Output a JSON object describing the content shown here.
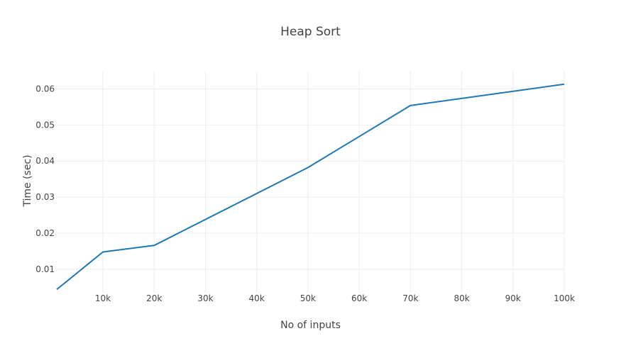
{
  "chart_data": {
    "type": "line",
    "title": "Heap  Sort",
    "xlabel": "No of inputs",
    "ylabel": "Time (sec)",
    "xlim": [
      1000,
      100000
    ],
    "ylim": [
      0.0035,
      0.065
    ],
    "grid": true,
    "x_ticks": [
      {
        "value": 10000,
        "label": "10k"
      },
      {
        "value": 20000,
        "label": "20k"
      },
      {
        "value": 30000,
        "label": "30k"
      },
      {
        "value": 40000,
        "label": "40k"
      },
      {
        "value": 50000,
        "label": "50k"
      },
      {
        "value": 60000,
        "label": "60k"
      },
      {
        "value": 70000,
        "label": "70k"
      },
      {
        "value": 80000,
        "label": "80k"
      },
      {
        "value": 90000,
        "label": "90k"
      },
      {
        "value": 100000,
        "label": "100k"
      }
    ],
    "y_ticks": [
      {
        "value": 0.01,
        "label": "0.01"
      },
      {
        "value": 0.02,
        "label": "0.02"
      },
      {
        "value": 0.03,
        "label": "0.03"
      },
      {
        "value": 0.04,
        "label": "0.04"
      },
      {
        "value": 0.05,
        "label": "0.05"
      },
      {
        "value": 0.06,
        "label": "0.06"
      }
    ],
    "series": [
      {
        "color": "#1f77b4",
        "x": [
          1000,
          10000,
          20000,
          50000,
          70000,
          100000
        ],
        "y": [
          0.0044,
          0.0148,
          0.0166,
          0.0382,
          0.0554,
          0.0613
        ]
      }
    ]
  }
}
